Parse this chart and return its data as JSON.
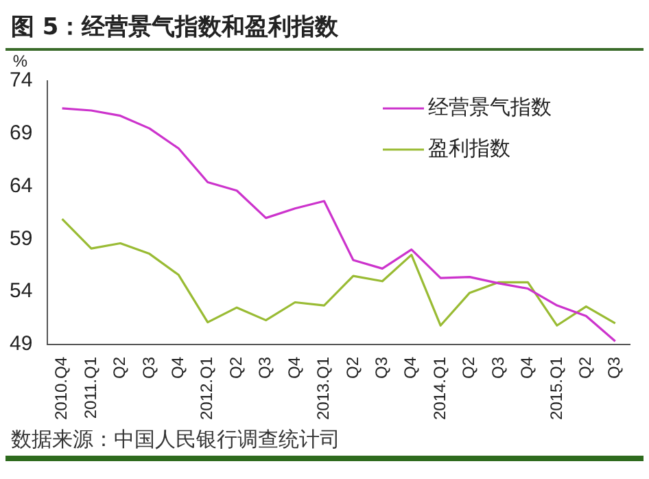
{
  "chart_data": {
    "type": "line",
    "title": "图 5：经营景气指数和盈利指数",
    "ylabel": "%",
    "categories": [
      "2010.Q4",
      "2011.Q1",
      "Q2",
      "Q3",
      "Q4",
      "2012.Q1",
      "Q2",
      "Q3",
      "Q4",
      "2013.Q1",
      "Q2",
      "Q3",
      "Q4",
      "2014.Q1",
      "Q2",
      "Q3",
      "Q4",
      "2015.Q1",
      "Q2",
      "Q3"
    ],
    "series": [
      {
        "name": "经营景气指数",
        "color": "#cc33cc",
        "values": [
          71.4,
          71.2,
          70.7,
          69.5,
          67.6,
          64.4,
          63.6,
          61.0,
          61.9,
          62.6,
          57.0,
          56.2,
          58.0,
          55.3,
          55.4,
          54.8,
          54.3,
          52.7,
          51.7,
          49.3
        ]
      },
      {
        "name": "盈利指数",
        "color": "#99bb33",
        "values": [
          60.9,
          58.1,
          58.6,
          57.6,
          55.6,
          51.1,
          52.5,
          51.3,
          53.0,
          52.7,
          55.5,
          55.0,
          57.5,
          50.8,
          53.9,
          54.9,
          54.9,
          50.8,
          52.6,
          51.0
        ]
      }
    ],
    "ylim": [
      49,
      74
    ],
    "yticks": [
      49,
      54,
      59,
      64,
      69,
      74
    ],
    "grid": false,
    "legend": "top right",
    "marker": "none",
    "line_style": "solid",
    "annotations": [
      "数据来源：中国人民银行调查统计司"
    ]
  }
}
